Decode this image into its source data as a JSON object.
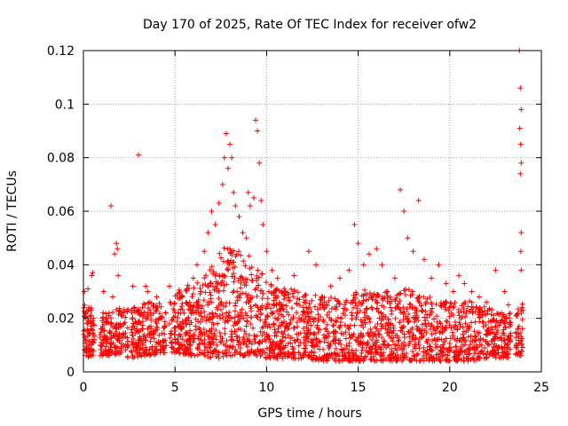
{
  "chart_data": {
    "type": "scatter",
    "title": "Day 170 of 2025, Rate Of TEC Index for receiver ofw2",
    "xlabel": "GPS time / hours",
    "ylabel": "ROTI / TECUs",
    "xlim": [
      0,
      25
    ],
    "ylim": [
      0,
      0.12
    ],
    "xticks": [
      0,
      5,
      10,
      15,
      20,
      25
    ],
    "yticks": [
      0,
      0.02,
      0.04,
      0.06,
      0.08,
      0.1,
      0.12
    ],
    "xtick_labels": [
      "0",
      "5",
      "10",
      "15",
      "20",
      "25"
    ],
    "ytick_labels": [
      "0",
      "0.02",
      "0.04",
      "0.06",
      "0.08",
      "0.1",
      "0.12"
    ],
    "grid": true,
    "marker": "+",
    "color": "#ff0000",
    "series": [
      {
        "points": [
          [
            0.05,
            0.03
          ],
          [
            0.1,
            0.022
          ],
          [
            0.12,
            0.012
          ],
          [
            0.15,
            0.008
          ],
          [
            0.2,
            0.018
          ],
          [
            0.25,
            0.031
          ],
          [
            0.3,
            0.024
          ],
          [
            0.35,
            0.014
          ],
          [
            0.4,
            0.01
          ],
          [
            0.45,
            0.036
          ],
          [
            0.5,
            0.037
          ],
          [
            0.55,
            0.02
          ],
          [
            1.0,
            0.016
          ],
          [
            1.1,
            0.03
          ],
          [
            1.2,
            0.012
          ],
          [
            1.4,
            0.022
          ],
          [
            1.5,
            0.062
          ],
          [
            1.6,
            0.028
          ],
          [
            1.7,
            0.044
          ],
          [
            1.8,
            0.048
          ],
          [
            1.85,
            0.046
          ],
          [
            1.9,
            0.036
          ],
          [
            2.0,
            0.018
          ],
          [
            2.2,
            0.014
          ],
          [
            2.4,
            0.01
          ],
          [
            2.7,
            0.032
          ],
          [
            2.8,
            0.024
          ],
          [
            3.0,
            0.081
          ],
          [
            3.2,
            0.016
          ],
          [
            3.4,
            0.032
          ],
          [
            3.5,
            0.03
          ],
          [
            3.6,
            0.026
          ],
          [
            3.8,
            0.014
          ],
          [
            4.0,
            0.028
          ],
          [
            4.2,
            0.011
          ],
          [
            4.4,
            0.009
          ],
          [
            4.7,
            0.032
          ],
          [
            4.8,
            0.014
          ],
          [
            5.0,
            0.012
          ],
          [
            5.2,
            0.022
          ],
          [
            5.4,
            0.028
          ],
          [
            5.6,
            0.018
          ],
          [
            5.8,
            0.026
          ],
          [
            6.0,
            0.035
          ],
          [
            6.2,
            0.04
          ],
          [
            6.4,
            0.03
          ],
          [
            6.6,
            0.045
          ],
          [
            6.8,
            0.052
          ],
          [
            7.0,
            0.06
          ],
          [
            7.2,
            0.055
          ],
          [
            7.4,
            0.063
          ],
          [
            7.6,
            0.07
          ],
          [
            7.7,
            0.08
          ],
          [
            7.8,
            0.089
          ],
          [
            7.9,
            0.076
          ],
          [
            8.0,
            0.085
          ],
          [
            8.1,
            0.08
          ],
          [
            8.2,
            0.067
          ],
          [
            8.3,
            0.062
          ],
          [
            8.5,
            0.058
          ],
          [
            8.7,
            0.052
          ],
          [
            8.9,
            0.05
          ],
          [
            9.0,
            0.067
          ],
          [
            9.1,
            0.062
          ],
          [
            9.3,
            0.065
          ],
          [
            9.4,
            0.094
          ],
          [
            9.5,
            0.09
          ],
          [
            9.6,
            0.078
          ],
          [
            9.7,
            0.064
          ],
          [
            9.8,
            0.055
          ],
          [
            10.0,
            0.045
          ],
          [
            10.3,
            0.038
          ],
          [
            10.6,
            0.035
          ],
          [
            11.0,
            0.03
          ],
          [
            11.5,
            0.036
          ],
          [
            12.0,
            0.028
          ],
          [
            12.3,
            0.045
          ],
          [
            12.7,
            0.04
          ],
          [
            13.0,
            0.028
          ],
          [
            13.5,
            0.032
          ],
          [
            14.0,
            0.035
          ],
          [
            14.5,
            0.038
          ],
          [
            14.8,
            0.055
          ],
          [
            15.0,
            0.048
          ],
          [
            15.3,
            0.04
          ],
          [
            15.6,
            0.044
          ],
          [
            16.0,
            0.046
          ],
          [
            16.3,
            0.04
          ],
          [
            16.6,
            0.03
          ],
          [
            17.0,
            0.035
          ],
          [
            17.3,
            0.068
          ],
          [
            17.5,
            0.06
          ],
          [
            17.7,
            0.05
          ],
          [
            18.0,
            0.045
          ],
          [
            18.3,
            0.064
          ],
          [
            18.6,
            0.042
          ],
          [
            19.0,
            0.035
          ],
          [
            19.4,
            0.04
          ],
          [
            19.8,
            0.033
          ],
          [
            20.2,
            0.03
          ],
          [
            20.5,
            0.036
          ],
          [
            20.8,
            0.033
          ],
          [
            21.2,
            0.03
          ],
          [
            21.6,
            0.028
          ],
          [
            22.0,
            0.026
          ],
          [
            22.5,
            0.038
          ],
          [
            23.0,
            0.03
          ],
          [
            23.2,
            0.025
          ],
          [
            23.8,
            0.12
          ],
          [
            23.85,
            0.106
          ],
          [
            23.9,
            0.098
          ],
          [
            23.82,
            0.091
          ],
          [
            23.87,
            0.085
          ],
          [
            23.9,
            0.078
          ],
          [
            23.85,
            0.074
          ],
          [
            23.9,
            0.052
          ],
          [
            23.88,
            0.045
          ],
          [
            23.9,
            0.038
          ]
        ]
      }
    ],
    "dense_envelope": {
      "x": [
        0,
        0.5,
        1.0,
        2.0,
        2.6,
        3.5,
        4.5,
        5.0,
        6.0,
        6.5,
        7.0,
        7.5,
        8.0,
        8.5,
        9.0,
        9.5,
        10.0,
        11.0,
        12.0,
        13.0,
        14.0,
        15.0,
        16.0,
        17.0,
        17.5,
        18.0,
        19.0,
        20.0,
        21.0,
        22.0,
        23.0,
        23.5,
        24.0
      ],
      "low": [
        0.005,
        0.006,
        0.006,
        0.006,
        0.005,
        0.006,
        0.007,
        0.007,
        0.006,
        0.006,
        0.005,
        0.005,
        0.006,
        0.006,
        0.006,
        0.006,
        0.005,
        0.005,
        0.005,
        0.004,
        0.004,
        0.004,
        0.004,
        0.004,
        0.004,
        0.004,
        0.004,
        0.004,
        0.004,
        0.005,
        0.005,
        0.006,
        0.006
      ],
      "high": [
        0.026,
        0.024,
        0.022,
        0.024,
        0.024,
        0.026,
        0.026,
        0.03,
        0.034,
        0.036,
        0.04,
        0.046,
        0.048,
        0.046,
        0.044,
        0.04,
        0.034,
        0.032,
        0.03,
        0.028,
        0.028,
        0.03,
        0.032,
        0.028,
        0.032,
        0.03,
        0.028,
        0.026,
        0.028,
        0.024,
        0.022,
        0.022,
        0.026
      ]
    }
  }
}
